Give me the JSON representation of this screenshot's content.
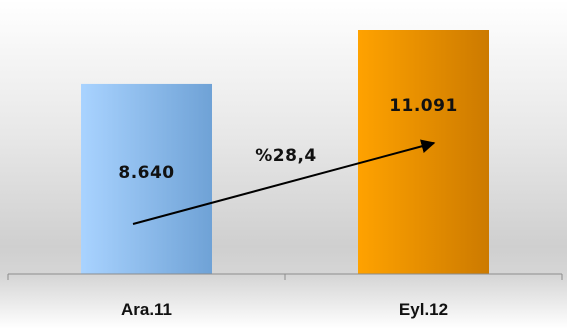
{
  "chart_data": {
    "type": "bar",
    "title": "",
    "xlabel": "",
    "ylabel": "",
    "categories": [
      "Ara.11",
      "Eyl.12"
    ],
    "values": [
      8640,
      11091
    ],
    "value_labels": [
      "8.640",
      "11.091"
    ],
    "ylim": [
      0,
      12000
    ],
    "grid": false,
    "legend": "none",
    "annotation": {
      "text": "%28,4",
      "type": "arrow",
      "from_category": "Ara.11",
      "to_category": "Eyl.12"
    },
    "colors": {
      "bar_1_light": "#a9d3ff",
      "bar_1_dark": "#6fa2d6",
      "bar_2_light": "#ffa200",
      "bar_2_dark": "#cc7a00",
      "axis": "#8c8c8c",
      "text": "#111111"
    }
  }
}
